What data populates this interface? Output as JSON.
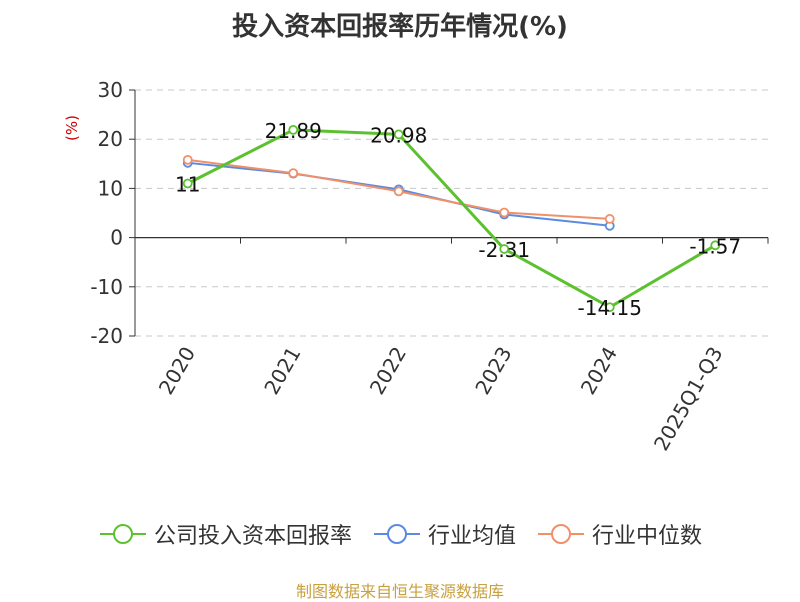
{
  "chart_data": {
    "type": "line",
    "title": "投入资本回报率历年情况(%)",
    "ylabel": "(%)",
    "xlabel": "",
    "categories": [
      "2020",
      "2021",
      "2022",
      "2023",
      "2024",
      "2025Q1-Q3"
    ],
    "ylim": [
      -20,
      30
    ],
    "yticks": [
      30,
      20,
      10,
      0,
      -10,
      -20
    ],
    "grid": true,
    "legend_position": "bottom",
    "series": [
      {
        "name": "公司投入资本回报率",
        "color": "#5cc12e",
        "values": [
          11,
          21.89,
          20.98,
          -2.31,
          -14.15,
          -1.57
        ],
        "labels": [
          "11",
          "21.89",
          "20.98",
          "-2.31",
          "-14.15",
          "-1.57"
        ]
      },
      {
        "name": "行业均值",
        "color": "#5b8be0",
        "values": [
          15.2,
          13.0,
          9.8,
          4.7,
          2.4,
          null
        ]
      },
      {
        "name": "行业中位数",
        "color": "#f0906a",
        "values": [
          15.8,
          13.1,
          9.4,
          5.1,
          3.8,
          null
        ]
      }
    ]
  },
  "source_text": "制图数据来自恒生聚源数据库"
}
